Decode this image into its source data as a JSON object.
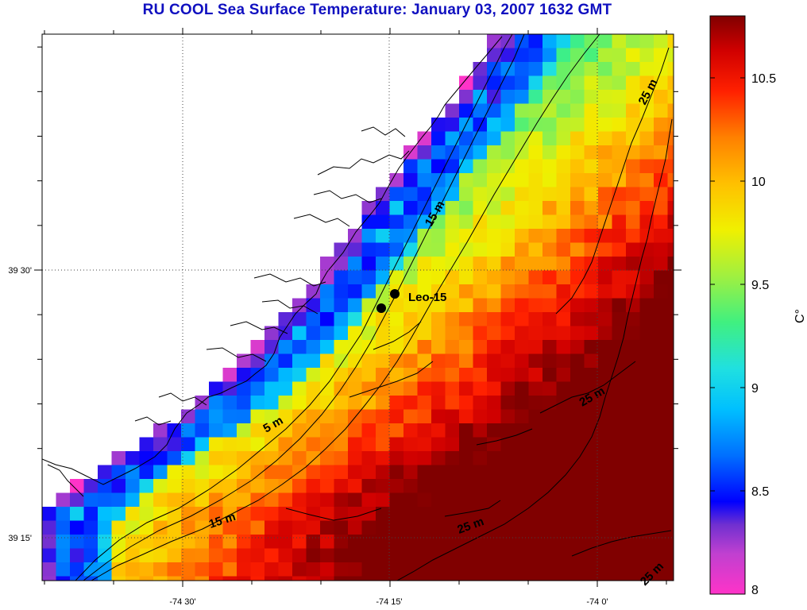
{
  "title": "RU COOL  Sea Surface Temperature:  January 03, 2007 1632 GMT",
  "colorbar": {
    "unit_label": "C°",
    "min": 8,
    "max": 10.8,
    "tick_labels": [
      "8",
      "8.5",
      "9",
      "9.5",
      "10",
      "10.5"
    ],
    "tick_values": [
      8,
      8.5,
      9,
      9.5,
      10,
      10.5
    ],
    "colors": [
      "#ff33c8",
      "#c040d0",
      "#7030d0",
      "#0000ff",
      "#0070ff",
      "#00c0ff",
      "#20e0e0",
      "#40f080",
      "#a0f040",
      "#f0f000",
      "#ffc000",
      "#ff8000",
      "#ff2000",
      "#d00000",
      "#800000"
    ]
  },
  "axes": {
    "x_labels": [
      "-74 30'",
      "-74 15'",
      "-74 0'"
    ],
    "y_labels": [
      "39 30'",
      "39 15'"
    ]
  },
  "station": {
    "label": "Leo-15"
  },
  "contour_labels": [
    "25 m",
    "15 m",
    "25 m",
    "5 m",
    "15 m",
    "25 m",
    "25 m"
  ]
}
